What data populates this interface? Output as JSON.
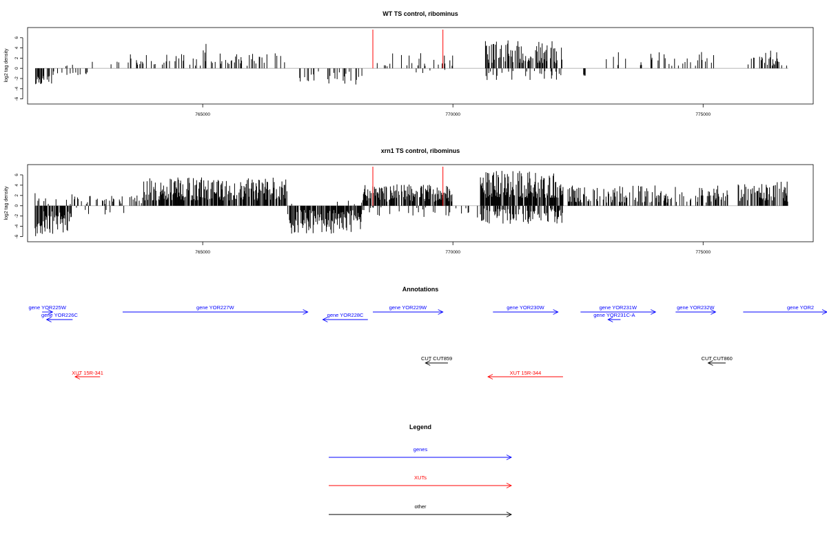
{
  "colors": {
    "gene": "#0000ff",
    "xut": "#ff0000",
    "other": "#000000",
    "highlight": "#ff0000",
    "bar": "#000000",
    "axis": "#000000",
    "baseline": "#aaaaaa"
  },
  "chart_data": [
    {
      "type": "bar",
      "title": "WT TS control, ribominus",
      "ylabel": "log2 tag density",
      "xlim": [
        761500,
        777200
      ],
      "ylim": [
        -7,
        8
      ],
      "x_ticks": [
        765000,
        770000,
        775000
      ],
      "x_tick_labels": [
        "765000",
        "770000",
        "775000"
      ],
      "y_ticks": [
        -6,
        -4,
        -2,
        0,
        2,
        4,
        6
      ],
      "y_tick_labels": [
        "-6",
        "-4",
        "-2",
        "0",
        "2",
        "4",
        "6"
      ],
      "highlight_lines": [
        768400,
        769800
      ],
      "segments": [
        {
          "start": 761650,
          "end": 762000,
          "sign": -1,
          "min": 1.2,
          "max": 3.6,
          "density": 0.55
        },
        {
          "start": 762000,
          "end": 762700,
          "sign": -1,
          "min": 0.6,
          "max": 1.8,
          "density": 0.15
        },
        {
          "start": 762200,
          "end": 763500,
          "sign": 1,
          "min": 0.4,
          "max": 1.3,
          "density": 0.04
        },
        {
          "start": 763500,
          "end": 766700,
          "sign": 1,
          "min": 0.5,
          "max": 3.0,
          "density": 0.2
        },
        {
          "start": 765000,
          "end": 765100,
          "sign": 1,
          "min": 2.5,
          "max": 5.0,
          "density": 0.3
        },
        {
          "start": 766850,
          "end": 768300,
          "sign": -1,
          "min": 0.6,
          "max": 3.2,
          "density": 0.15
        },
        {
          "start": 768300,
          "end": 770000,
          "sign": 1,
          "min": 0.4,
          "max": 3.0,
          "density": 0.14
        },
        {
          "start": 769200,
          "end": 770200,
          "sign": -1,
          "min": 0.3,
          "max": 1.5,
          "density": 0.04
        },
        {
          "start": 770650,
          "end": 772200,
          "sign": 1,
          "min": 1.0,
          "max": 5.5,
          "density": 0.55
        },
        {
          "start": 770650,
          "end": 772200,
          "sign": -1,
          "min": 0.5,
          "max": 2.5,
          "density": 0.18
        },
        {
          "start": 772600,
          "end": 772650,
          "sign": -1,
          "min": 1.2,
          "max": 1.6,
          "density": 0.5
        },
        {
          "start": 772900,
          "end": 775500,
          "sign": 1,
          "min": 0.5,
          "max": 3.2,
          "density": 0.18
        },
        {
          "start": 775700,
          "end": 776700,
          "sign": 1,
          "min": 0.5,
          "max": 3.5,
          "density": 0.22
        }
      ]
    },
    {
      "type": "bar",
      "title": "xrn1 TS control, ribominus",
      "ylabel": "log2 tag density",
      "xlim": [
        761500,
        777200
      ],
      "ylim": [
        -7,
        8
      ],
      "x_ticks": [
        765000,
        770000,
        775000
      ],
      "x_tick_labels": [
        "765000",
        "770000",
        "775000"
      ],
      "y_ticks": [
        -6,
        -4,
        -2,
        0,
        2,
        4,
        6
      ],
      "y_tick_labels": [
        "-6",
        "-4",
        "-2",
        "0",
        "2",
        "4",
        "6"
      ],
      "highlight_lines": [
        768400,
        769800
      ],
      "segments": [
        {
          "start": 761650,
          "end": 762400,
          "sign": -1,
          "min": 1.0,
          "max": 6.0,
          "density": 0.7
        },
        {
          "start": 761650,
          "end": 762400,
          "sign": 1,
          "min": 0.3,
          "max": 2.5,
          "density": 0.15
        },
        {
          "start": 762400,
          "end": 763800,
          "sign": 1,
          "min": 0.3,
          "max": 2.0,
          "density": 0.25
        },
        {
          "start": 762400,
          "end": 763800,
          "sign": -1,
          "min": 0.2,
          "max": 2.0,
          "density": 0.1
        },
        {
          "start": 763800,
          "end": 766700,
          "sign": 1,
          "min": 1.0,
          "max": 5.5,
          "density": 0.75
        },
        {
          "start": 766700,
          "end": 768200,
          "sign": -1,
          "min": 0.8,
          "max": 5.5,
          "density": 0.75
        },
        {
          "start": 766700,
          "end": 768200,
          "sign": 1,
          "min": 0.2,
          "max": 1.0,
          "density": 0.05
        },
        {
          "start": 768200,
          "end": 770000,
          "sign": 1,
          "min": 0.8,
          "max": 4.2,
          "density": 0.75
        },
        {
          "start": 768200,
          "end": 770000,
          "sign": -1,
          "min": 0.3,
          "max": 2.5,
          "density": 0.12
        },
        {
          "start": 770050,
          "end": 770550,
          "sign": -1,
          "min": 0.2,
          "max": 2.5,
          "density": 0.1
        },
        {
          "start": 770550,
          "end": 772200,
          "sign": 1,
          "min": 1.5,
          "max": 7.0,
          "density": 0.85
        },
        {
          "start": 770550,
          "end": 772200,
          "sign": -1,
          "min": 0.5,
          "max": 3.5,
          "density": 0.6
        },
        {
          "start": 772300,
          "end": 775500,
          "sign": 1,
          "min": 0.6,
          "max": 4.0,
          "density": 0.45
        },
        {
          "start": 775700,
          "end": 776700,
          "sign": 1,
          "min": 0.8,
          "max": 4.7,
          "density": 0.55
        }
      ]
    }
  ],
  "annotations": {
    "title": "Annotations",
    "genes": [
      {
        "label": "gene YOR225W",
        "start": 761790,
        "end": 762000,
        "strand": "+",
        "row": 0
      },
      {
        "label": "gene YOR226C",
        "start": 761880,
        "end": 762400,
        "strand": "-",
        "row": 1
      },
      {
        "label": "gene YOR227W",
        "start": 763400,
        "end": 767100,
        "strand": "+",
        "row": 0
      },
      {
        "label": "gene YOR228C",
        "start": 767400,
        "end": 768300,
        "strand": "-",
        "row": 1
      },
      {
        "label": "gene YOR229W",
        "start": 768400,
        "end": 769800,
        "strand": "+",
        "row": 0
      },
      {
        "label": "gene YOR230W",
        "start": 770800,
        "end": 772100,
        "strand": "+",
        "row": 0
      },
      {
        "label": "gene YOR231W",
        "start": 772550,
        "end": 774050,
        "strand": "+",
        "row": 0
      },
      {
        "label": "gene YOR231C-A",
        "start": 773100,
        "end": 773350,
        "strand": "-",
        "row": 1
      },
      {
        "label": "gene YOR232W",
        "start": 774450,
        "end": 775250,
        "strand": "+",
        "row": 0
      },
      {
        "label": "gene YOR2",
        "start": 775800,
        "end": 777500,
        "strand": "+",
        "row": 0
      }
    ],
    "cuts": [
      {
        "label": "CUT CUT859",
        "start": 769450,
        "end": 769900,
        "strand": "-"
      },
      {
        "label": "CUT CUT860",
        "start": 775100,
        "end": 775450,
        "strand": "-"
      }
    ],
    "xuts": [
      {
        "label": "XUT 15R-341",
        "start": 762450,
        "end": 762950,
        "strand": "-"
      },
      {
        "label": "XUT 15R-344",
        "start": 770700,
        "end": 772200,
        "strand": "-"
      }
    ]
  },
  "legend": {
    "title": "Legend",
    "items": [
      {
        "label": "genes",
        "type": "gene"
      },
      {
        "label": "XUTs",
        "type": "xut"
      },
      {
        "label": "other",
        "type": "other"
      }
    ]
  }
}
